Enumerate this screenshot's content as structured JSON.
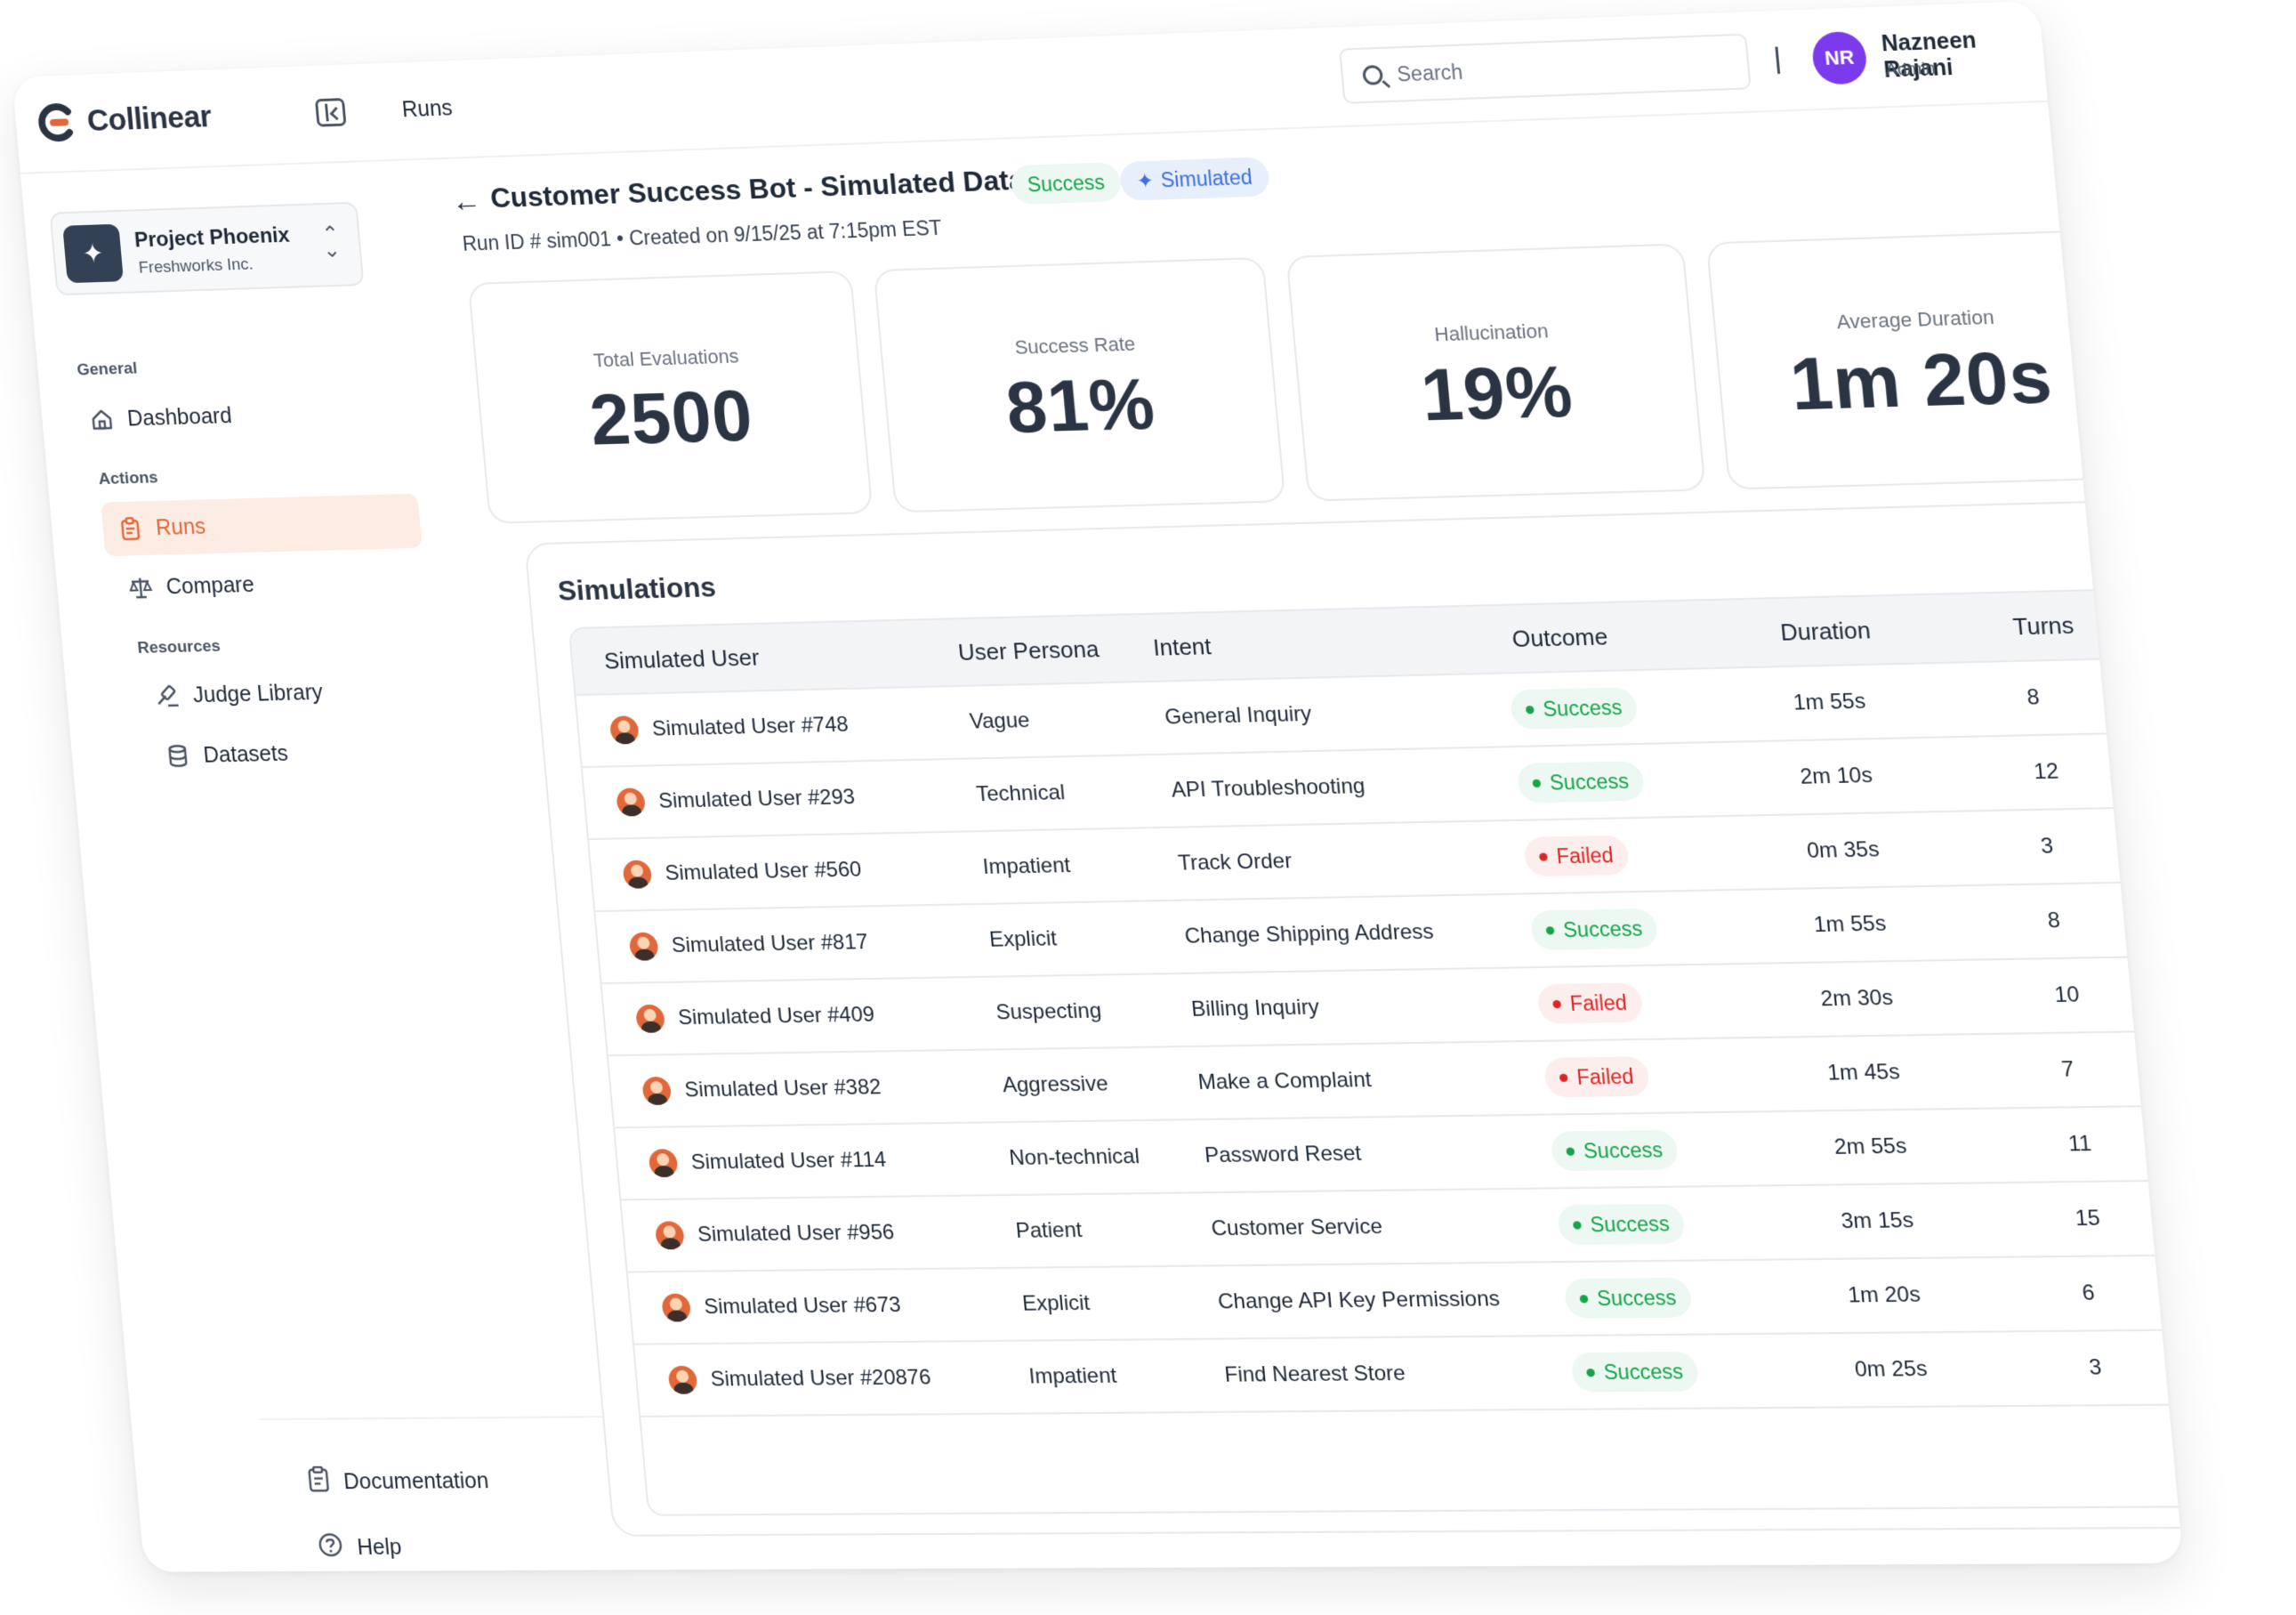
{
  "app": {
    "name": "Collinear"
  },
  "header": {
    "breadcrumb": "Runs",
    "search_placeholder": "Search"
  },
  "user": {
    "initials": "NR",
    "name": "Nazneen Rajani",
    "role": "Admin"
  },
  "project": {
    "name": "Project Phoenix",
    "org": "Freshworks Inc."
  },
  "sidebar": {
    "sections": [
      {
        "label": "General",
        "items": [
          {
            "label": "Dashboard",
            "icon": "home-icon"
          }
        ]
      },
      {
        "label": "Actions",
        "items": [
          {
            "label": "Runs",
            "icon": "clipboard-icon",
            "active": true
          },
          {
            "label": "Compare",
            "icon": "scale-icon"
          }
        ]
      },
      {
        "label": "Resources",
        "items": [
          {
            "label": "Judge Library",
            "icon": "gavel-icon"
          },
          {
            "label": "Datasets",
            "icon": "database-icon"
          }
        ]
      }
    ],
    "footer": {
      "documentation": "Documentation",
      "help": "Help"
    }
  },
  "page": {
    "title": "Customer Success Bot - Simulated Dataset",
    "badge_status": "Success",
    "badge_type": "Simulated",
    "meta": "Run ID # sim001 • Created on 9/15/25 at 7:15pm EST"
  },
  "stats": [
    {
      "label": "Total Evaluations",
      "value": "2500"
    },
    {
      "label": "Success Rate",
      "value": "81%"
    },
    {
      "label": "Hallucination",
      "value": "19%"
    },
    {
      "label": "Average Duration",
      "value": "1m 20s"
    }
  ],
  "simulations": {
    "title": "Simulations",
    "columns": [
      "Simulated User",
      "User Persona",
      "Intent",
      "Outcome",
      "Duration",
      "Turns"
    ],
    "rows": [
      {
        "user": "Simulated User #748",
        "persona": "Vague",
        "intent": "General Inquiry",
        "outcome": "Success",
        "duration": "1m 55s",
        "turns": "8"
      },
      {
        "user": "Simulated User #293",
        "persona": "Technical",
        "intent": "API Troubleshooting",
        "outcome": "Success",
        "duration": "2m 10s",
        "turns": "12"
      },
      {
        "user": "Simulated User #560",
        "persona": "Impatient",
        "intent": "Track Order",
        "outcome": "Failed",
        "duration": "0m 35s",
        "turns": "3"
      },
      {
        "user": "Simulated User #817",
        "persona": "Explicit",
        "intent": "Change Shipping Address",
        "outcome": "Success",
        "duration": "1m 55s",
        "turns": "8"
      },
      {
        "user": "Simulated User #409",
        "persona": "Suspecting",
        "intent": "Billing Inquiry",
        "outcome": "Failed",
        "duration": "2m 30s",
        "turns": "10"
      },
      {
        "user": "Simulated User #382",
        "persona": "Aggressive",
        "intent": "Make a Complaint",
        "outcome": "Failed",
        "duration": "1m 45s",
        "turns": "7"
      },
      {
        "user": "Simulated User #114",
        "persona": "Non-technical",
        "intent": "Password Reset",
        "outcome": "Success",
        "duration": "2m 55s",
        "turns": "11"
      },
      {
        "user": "Simulated User #956",
        "persona": "Patient",
        "intent": "Customer Service",
        "outcome": "Success",
        "duration": "3m 15s",
        "turns": "15"
      },
      {
        "user": "Simulated User #673",
        "persona": "Explicit",
        "intent": "Change API Key Permissions",
        "outcome": "Success",
        "duration": "1m 20s",
        "turns": "6"
      },
      {
        "user": "Simulated User #20876",
        "persona": "Impatient",
        "intent": "Find Nearest Store",
        "outcome": "Success",
        "duration": "0m 25s",
        "turns": "3"
      }
    ]
  },
  "colors": {
    "accent": "#e0683a",
    "success": "#16a34a",
    "failed": "#dc2626",
    "simulated": "#3b6fe0",
    "avatar_bg": "#7c3aed"
  }
}
